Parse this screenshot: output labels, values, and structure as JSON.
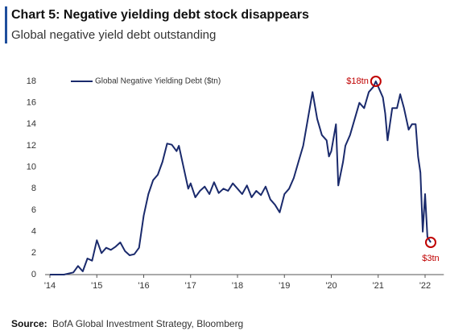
{
  "chart_data": {
    "type": "line",
    "title": "Chart 5: Negative yielding debt stock disappears",
    "subtitle": "Global negative yield debt outstanding",
    "source_label": "Source:",
    "source": "BofA Global Investment Strategy, Bloomberg",
    "annotations": [
      "$18tn",
      "$3tn"
    ],
    "legend": "upper left",
    "x": [
      2014.0,
      2014.3,
      2014.5,
      2014.6,
      2014.7,
      2014.8,
      2014.9,
      2015.0,
      2015.1,
      2015.2,
      2015.3,
      2015.4,
      2015.5,
      2015.6,
      2015.7,
      2015.8,
      2015.9,
      2016.0,
      2016.1,
      2016.2,
      2016.3,
      2016.4,
      2016.5,
      2016.6,
      2016.7,
      2016.75,
      2016.85,
      2016.95,
      2017.0,
      2017.1,
      2017.2,
      2017.3,
      2017.4,
      2017.5,
      2017.6,
      2017.7,
      2017.8,
      2017.9,
      2018.0,
      2018.1,
      2018.2,
      2018.3,
      2018.4,
      2018.5,
      2018.6,
      2018.7,
      2018.8,
      2018.9,
      2019.0,
      2019.1,
      2019.2,
      2019.3,
      2019.4,
      2019.5,
      2019.6,
      2019.7,
      2019.8,
      2019.9,
      2019.95,
      2020.0,
      2020.1,
      2020.15,
      2020.25,
      2020.3,
      2020.4,
      2020.5,
      2020.6,
      2020.7,
      2020.8,
      2020.9,
      2020.95,
      2021.0,
      2021.1,
      2021.15,
      2021.2,
      2021.3,
      2021.4,
      2021.47,
      2021.55,
      2021.65,
      2021.72,
      2021.8,
      2021.85,
      2021.9,
      2021.95,
      2022.0,
      2022.05,
      2022.12
    ],
    "series": [
      {
        "name": "Global Negative Yielding Debt ($tn)",
        "color": "#1a2a6c",
        "values": [
          0,
          0,
          0.2,
          0.8,
          0.3,
          1.5,
          1.3,
          3.2,
          2.0,
          2.5,
          2.3,
          2.6,
          3.0,
          2.2,
          1.8,
          1.9,
          2.5,
          5.5,
          7.5,
          8.8,
          9.3,
          10.5,
          12.2,
          12.1,
          11.5,
          12.0,
          10.0,
          8.0,
          8.5,
          7.2,
          7.8,
          8.2,
          7.5,
          8.6,
          7.6,
          8.0,
          7.8,
          8.5,
          8.0,
          7.5,
          8.3,
          7.2,
          7.8,
          7.4,
          8.2,
          7.0,
          6.5,
          5.8,
          7.5,
          8.0,
          9.0,
          10.5,
          12.0,
          14.5,
          17.0,
          14.5,
          13.0,
          12.5,
          11.0,
          11.5,
          14.0,
          8.3,
          10.5,
          12.0,
          13.0,
          14.5,
          16.0,
          15.5,
          17.0,
          17.5,
          18.0,
          17.5,
          16.5,
          15.0,
          12.5,
          15.5,
          15.5,
          16.8,
          15.5,
          13.5,
          14.0,
          14.0,
          11.0,
          9.5,
          4.0,
          7.5,
          3.5,
          3.0
        ]
      }
    ],
    "xlim": [
      2014,
      2022.4
    ],
    "xticks": [
      {
        "value": 2014,
        "label": "'14"
      },
      {
        "value": 2015,
        "label": "'15"
      },
      {
        "value": 2016,
        "label": "'16"
      },
      {
        "value": 2017,
        "label": "'17"
      },
      {
        "value": 2018,
        "label": "'18"
      },
      {
        "value": 2019,
        "label": "'19"
      },
      {
        "value": 2020,
        "label": "'20"
      },
      {
        "value": 2021,
        "label": "'21"
      },
      {
        "value": 2022,
        "label": "'22"
      }
    ],
    "ylim": [
      0,
      18
    ],
    "yticks": [
      0,
      2,
      4,
      6,
      8,
      10,
      12,
      14,
      16,
      18
    ]
  }
}
